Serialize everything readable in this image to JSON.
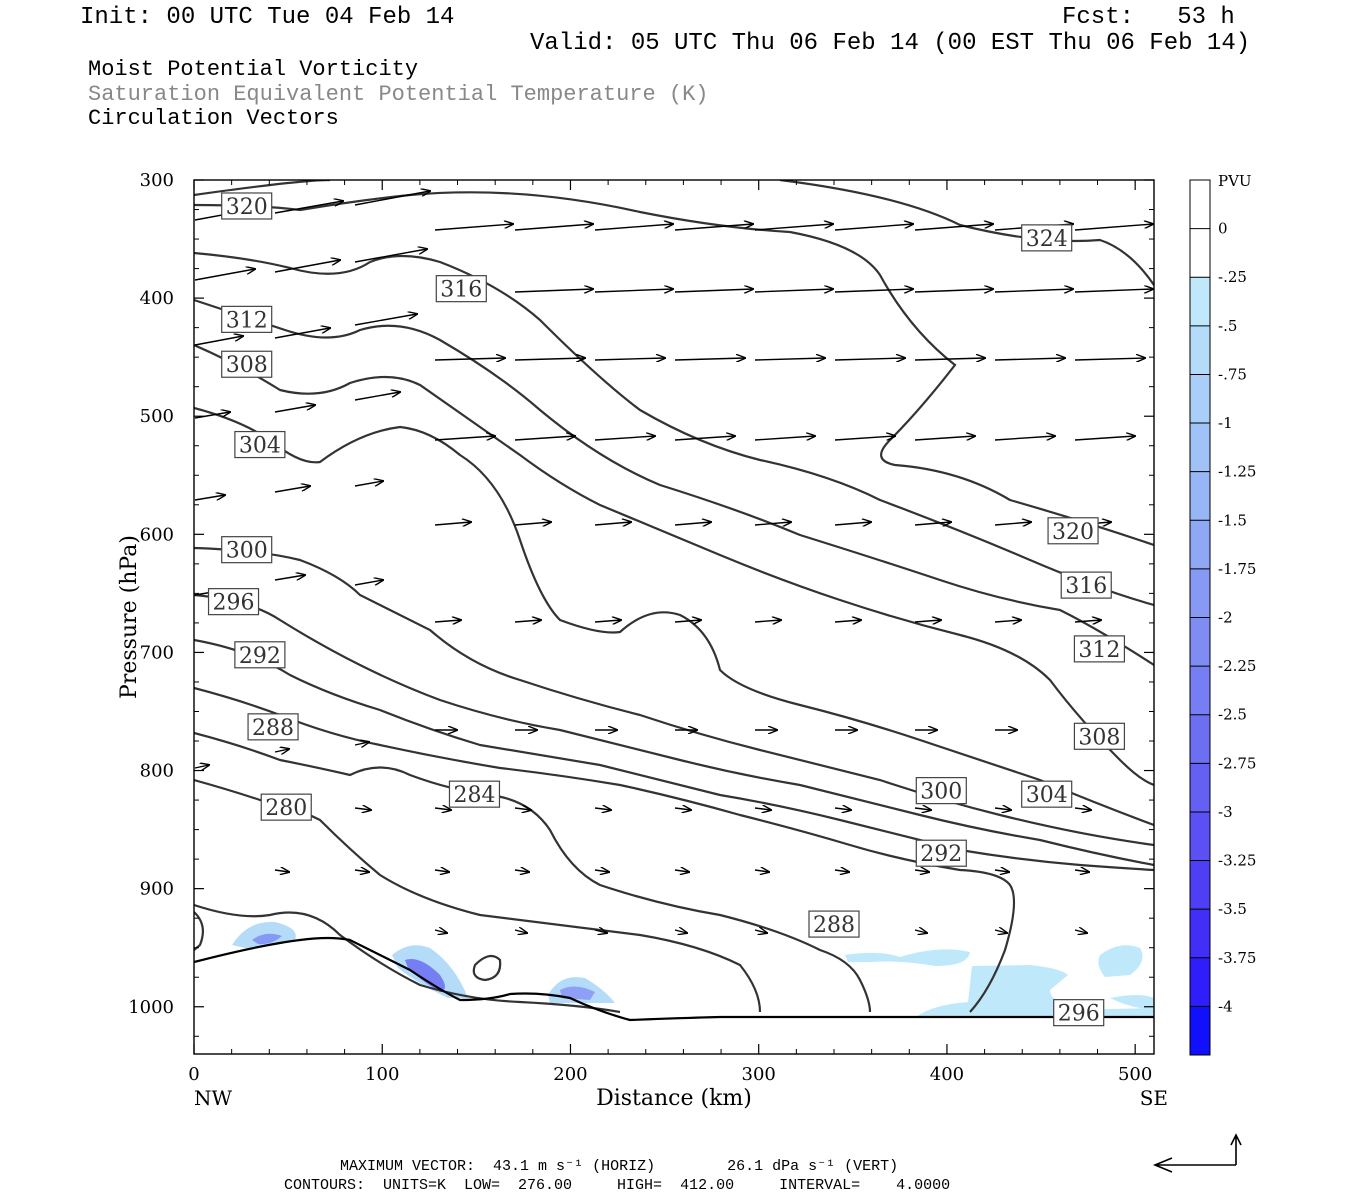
{
  "header": {
    "init": "Init: 00 UTC Tue 04 Feb 14",
    "fcst": "Fcst:   53 h",
    "valid": "Valid: 05 UTC Thu 06 Feb 14 (00 EST Thu 06 Feb 14)"
  },
  "fields": {
    "line1": "Moist Potential Vorticity",
    "line2": "Saturation Equivalent Potential Temperature (K)",
    "line3": "Circulation Vectors"
  },
  "footer": {
    "max_vector": "MAXIMUM VECTOR:  43.1 m s⁻¹ (HORIZ)        26.1 dPa s⁻¹ (VERT)",
    "contours": "CONTOURS:  UNITS=K  LOW=  276.00     HIGH=  412.00     INTERVAL=    4.0000"
  },
  "chart_data": {
    "type": "cross-section",
    "xlabel": "Distance (km)",
    "ylabel": "Pressure (hPa)",
    "x_left_label": "NW",
    "x_right_label": "SE",
    "xlim": [
      0,
      510
    ],
    "ylim": [
      1040,
      300
    ],
    "x_ticks": [
      "0",
      "100",
      "200",
      "300",
      "400",
      "500"
    ],
    "y_ticks": [
      "300",
      "400",
      "500",
      "600",
      "700",
      "800",
      "900",
      "1000"
    ],
    "colorbar": {
      "unit": "PVU",
      "labels": [
        "0",
        "-.25",
        "-.5",
        "-.75",
        "-1",
        "-1.25",
        "-1.5",
        "-1.75",
        "-2",
        "-2.25",
        "-2.5",
        "-2.75",
        "-3",
        "-3.25",
        "-3.5",
        "-3.75",
        "-4"
      ],
      "colors": [
        "#ffffff",
        "#ffffff",
        "#bfe8fb",
        "#b4dcf9",
        "#a9cff8",
        "#a0c2f7",
        "#98b5f6",
        "#8fa7f5",
        "#8799f4",
        "#7f8cf3",
        "#767ef3",
        "#6d6ff3",
        "#6460f3",
        "#5a50f4",
        "#4e3ff5",
        "#412ef7",
        "#2f1dfa",
        "#1010fd"
      ]
    },
    "contour_labels": [
      {
        "text": "320",
        "x": 28,
        "p": 322
      },
      {
        "text": "312",
        "x": 28,
        "p": 418
      },
      {
        "text": "308",
        "x": 28,
        "p": 456
      },
      {
        "text": "304",
        "x": 35,
        "p": 524
      },
      {
        "text": "300",
        "x": 28,
        "p": 613
      },
      {
        "text": "296",
        "x": 21,
        "p": 657
      },
      {
        "text": "292",
        "x": 35,
        "p": 702
      },
      {
        "text": "288",
        "x": 42,
        "p": 763
      },
      {
        "text": "280",
        "x": 49,
        "p": 831
      },
      {
        "text": "284",
        "x": 149,
        "p": 820
      },
      {
        "text": "316",
        "x": 142,
        "p": 392
      },
      {
        "text": "324",
        "x": 453,
        "p": 349
      },
      {
        "text": "320",
        "x": 467,
        "p": 597
      },
      {
        "text": "316",
        "x": 474,
        "p": 643
      },
      {
        "text": "312",
        "x": 481,
        "p": 697
      },
      {
        "text": "308",
        "x": 481,
        "p": 771
      },
      {
        "text": "304",
        "x": 453,
        "p": 820
      },
      {
        "text": "300",
        "x": 397,
        "p": 817
      },
      {
        "text": "292",
        "x": 397,
        "p": 870
      },
      {
        "text": "288",
        "x": 340,
        "p": 930
      },
      {
        "text": "296",
        "x": 470,
        "p": 1005
      }
    ]
  }
}
